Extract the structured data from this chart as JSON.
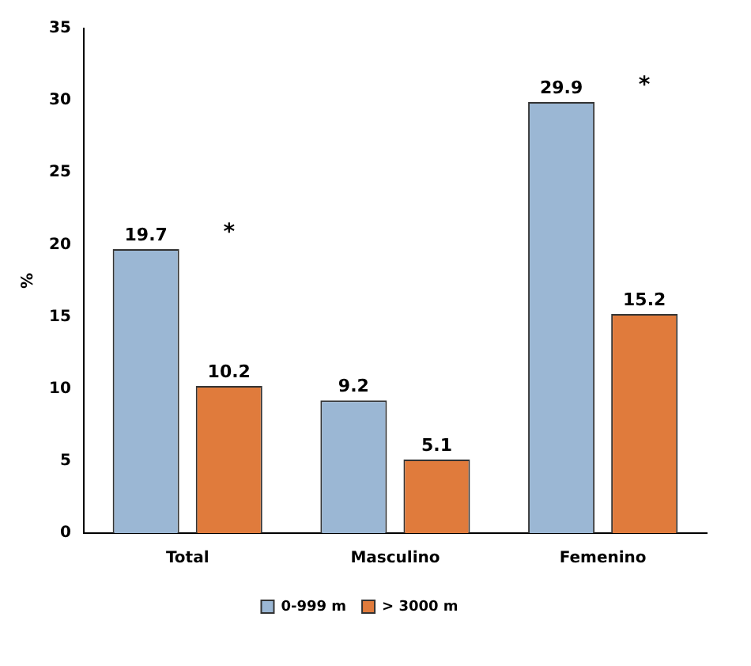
{
  "chart_data": {
    "type": "bar",
    "ylabel": "%",
    "categories": [
      "Total",
      "Masculino",
      "Femenino"
    ],
    "series": [
      {
        "name": "0-999 m",
        "color": "#9bb7d4",
        "values": [
          19.7,
          9.2,
          29.9
        ]
      },
      {
        "name": "> 3000 m",
        "color": "#e07b3c",
        "values": [
          10.2,
          5.1,
          15.2
        ]
      }
    ],
    "ylim": [
      0,
      35
    ],
    "yticks": [
      0,
      5,
      10,
      15,
      20,
      25,
      30,
      35
    ],
    "grid": false,
    "legend": "bottom",
    "data_labels": true,
    "annotations": [
      "*",
      "*"
    ]
  }
}
